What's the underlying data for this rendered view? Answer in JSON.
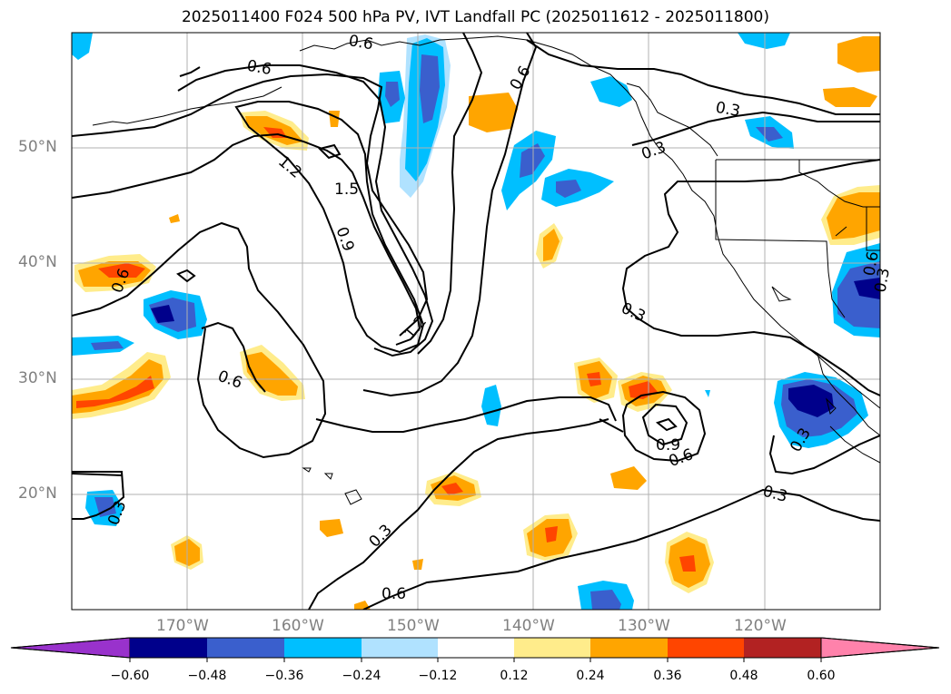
{
  "title": "2025011400 F024 500 hPa PV, IVT Landfall PC (2025011612 - 2025011800)",
  "lat_labels": [
    "50°N",
    "40°N",
    "30°N",
    "20°N"
  ],
  "lon_labels": [
    "170°W",
    "160°W",
    "150°W",
    "140°W",
    "130°W",
    "120°W"
  ],
  "colorbar": {
    "ticks": [
      "−0.60",
      "−0.48",
      "−0.36",
      "−0.24",
      "−0.12",
      "0.12",
      "0.24",
      "0.36",
      "0.48",
      "0.60"
    ],
    "colors": {
      "under": "#9932cc",
      "bins": [
        "#00008b",
        "#3a5fcd",
        "#00bfff",
        "#b0e2ff",
        "#ffffff",
        "#ffec8b",
        "#ffa500",
        "#ff4500",
        "#b22222"
      ],
      "over": "#ff82ab"
    }
  },
  "contour_labels": [
    "0.6",
    "0.6",
    "0.3",
    "0.3",
    "1.2",
    "1.5",
    "0.9",
    "0.6",
    "0.6",
    "0.3",
    "1.2",
    "0.6",
    "0.9",
    "0.6",
    "0.3",
    "0.3",
    "0.6",
    "0.3",
    "0.3",
    "0.6",
    "0.3"
  ],
  "map": {
    "lat_range": [
      10,
      60
    ],
    "lon_range": [
      -180,
      -110
    ],
    "shaded_field": "IVT Landfall PC",
    "contour_field": "500 hPa PV"
  }
}
